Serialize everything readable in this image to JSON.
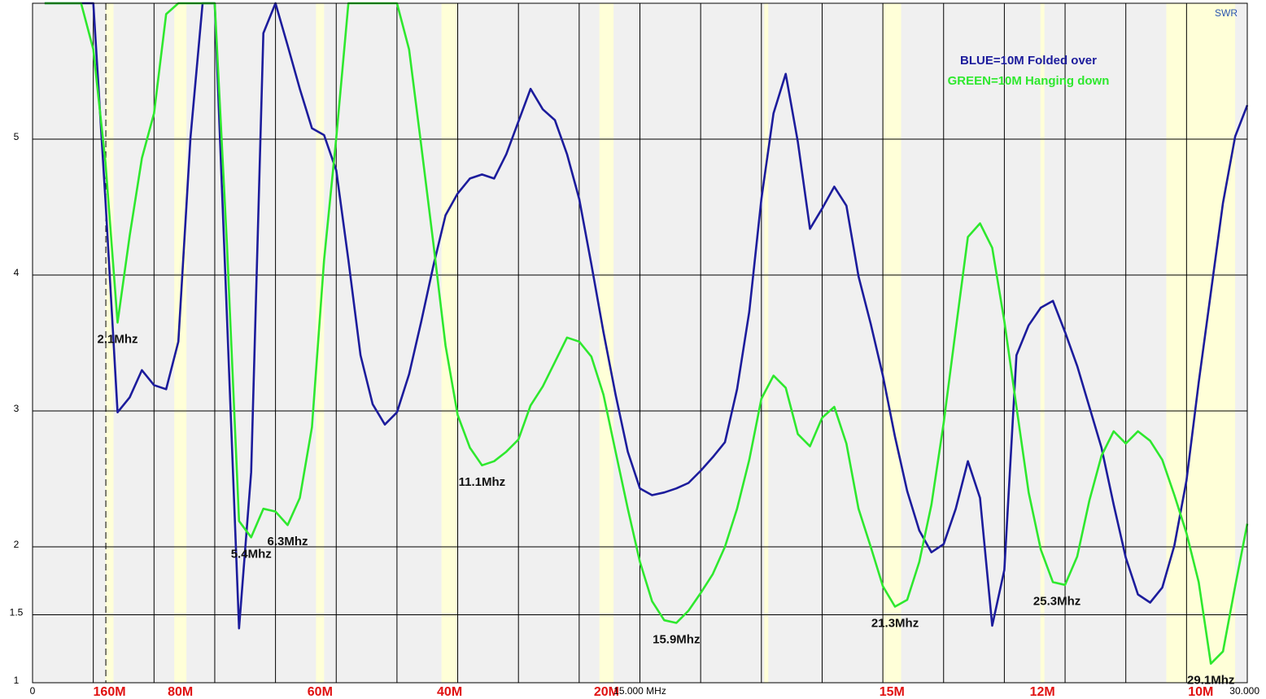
{
  "chart_data": {
    "type": "line",
    "title": "SWR",
    "x": [
      0.3,
      0.6,
      0.9,
      1.2,
      1.5,
      1.8,
      2.1,
      2.4,
      2.7,
      3.0,
      3.3,
      3.6,
      3.9,
      4.2,
      4.5,
      4.8,
      5.1,
      5.4,
      5.7,
      6.0,
      6.3,
      6.6,
      6.9,
      7.2,
      7.5,
      7.8,
      8.1,
      8.4,
      8.7,
      9.0,
      9.3,
      9.6,
      9.9,
      10.2,
      10.5,
      10.8,
      11.1,
      11.4,
      11.7,
      12.0,
      12.3,
      12.6,
      12.9,
      13.2,
      13.5,
      13.8,
      14.1,
      14.4,
      14.7,
      15.0,
      15.3,
      15.6,
      15.9,
      16.2,
      16.5,
      16.8,
      17.1,
      17.4,
      17.7,
      18.0,
      18.3,
      18.6,
      18.9,
      19.2,
      19.5,
      19.8,
      20.1,
      20.4,
      20.7,
      21.0,
      21.3,
      21.6,
      21.9,
      22.2,
      22.5,
      22.8,
      23.1,
      23.4,
      23.7,
      24.0,
      24.3,
      24.6,
      24.9,
      25.2,
      25.5,
      25.8,
      26.1,
      26.4,
      26.7,
      27.0,
      27.3,
      27.6,
      27.9,
      28.2,
      28.5,
      28.8,
      29.1,
      29.4,
      29.7,
      30.0
    ],
    "series": [
      {
        "name": "BLUE=10M Folded over",
        "color": "#1c1c9c",
        "values": [
          6,
          6,
          6,
          6,
          6,
          4.55,
          2.99,
          3.1,
          3.3,
          3.19,
          3.16,
          3.51,
          5.01,
          6,
          6,
          3.7,
          1.4,
          2.55,
          5.78,
          6,
          5.69,
          5.37,
          5.08,
          5.03,
          4.77,
          4.11,
          3.41,
          3.05,
          2.9,
          2.99,
          3.27,
          3.66,
          4.07,
          4.44,
          4.6,
          4.71,
          4.74,
          4.71,
          4.89,
          5.13,
          5.37,
          5.22,
          5.14,
          4.89,
          4.56,
          4.08,
          3.58,
          3.12,
          2.7,
          2.43,
          2.38,
          2.4,
          2.43,
          2.47,
          2.56,
          2.66,
          2.77,
          3.16,
          3.73,
          4.56,
          5.19,
          5.48,
          4.98,
          4.34,
          4.49,
          4.65,
          4.51,
          3.99,
          3.64,
          3.26,
          2.81,
          2.41,
          2.12,
          1.96,
          2.02,
          2.28,
          2.63,
          2.36,
          1.42,
          1.83,
          3.41,
          3.63,
          3.76,
          3.81,
          3.58,
          3.33,
          3.03,
          2.73,
          2.31,
          1.92,
          1.65,
          1.59,
          1.7,
          2.01,
          2.49,
          3.21,
          3.87,
          4.53,
          5.02,
          5.25
        ]
      },
      {
        "name": "GREEN=10M Hanging down",
        "color": "#2ee82e",
        "values": [
          6,
          6,
          6,
          6,
          5.66,
          4.83,
          3.65,
          4.29,
          4.86,
          5.19,
          5.92,
          6,
          6,
          6,
          6,
          4.23,
          2.19,
          2.07,
          2.28,
          2.26,
          2.16,
          2.36,
          2.88,
          4.11,
          5.01,
          6,
          6,
          6,
          6,
          6,
          5.66,
          4.95,
          4.23,
          3.48,
          2.97,
          2.73,
          2.6,
          2.63,
          2.7,
          2.79,
          3.04,
          3.18,
          3.36,
          3.54,
          3.51,
          3.4,
          3.12,
          2.7,
          2.28,
          1.89,
          1.6,
          1.46,
          1.44,
          1.53,
          1.66,
          1.8,
          2.0,
          2.28,
          2.64,
          3.09,
          3.26,
          3.17,
          2.83,
          2.74,
          2.95,
          3.03,
          2.76,
          2.28,
          2.0,
          1.71,
          1.56,
          1.61,
          1.89,
          2.31,
          2.91,
          3.6,
          4.28,
          4.38,
          4.2,
          3.66,
          3.03,
          2.4,
          1.98,
          1.74,
          1.72,
          1.93,
          2.34,
          2.67,
          2.85,
          2.76,
          2.85,
          2.78,
          2.64,
          2.38,
          2.1,
          1.74,
          1.14,
          1.23,
          1.71,
          2.17
        ]
      }
    ],
    "xlim": [
      0,
      30
    ],
    "xticks": [
      0,
      {
        "value": 15,
        "label": "15.000 MHz"
      },
      {
        "value": 30,
        "label": "30.000"
      }
    ],
    "xgrid": [
      1.5,
      3,
      4.5,
      6,
      7.5,
      9,
      10.5,
      12,
      13.5,
      15,
      16.5,
      18,
      19.5,
      21,
      22.5,
      24,
      25.5,
      27,
      28.5
    ],
    "ylim": [
      1,
      6
    ],
    "yticks": [
      1,
      1.5,
      2,
      3,
      4,
      5
    ],
    "grid": true,
    "cursor": 1.81,
    "bands": [
      {
        "label": "160M",
        "start": 1.8,
        "end": 2.0
      },
      {
        "label": "80M",
        "start": 3.5,
        "end": 3.8
      },
      {
        "label": "60M",
        "start": 7.0,
        "end": 7.2
      },
      {
        "label": "40M",
        "start": 10.1,
        "end": 10.5
      },
      {
        "label": "20M",
        "start": 14.0,
        "end": 14.35
      },
      {
        "label": null,
        "start": 18.07,
        "end": 18.17
      },
      {
        "label": "15M",
        "start": 21.0,
        "end": 21.45
      },
      {
        "label": "12M",
        "start": 24.89,
        "end": 24.99
      },
      {
        "label": "10M",
        "start": 28.0,
        "end": 29.7
      }
    ],
    "annotations": [
      {
        "text": "2.1Mhz",
        "x": 2.1,
        "y": 3.65
      },
      {
        "text": "5.4Mhz",
        "x": 5.4,
        "y": 2.07
      },
      {
        "text": "6.3Mhz",
        "x": 6.3,
        "y": 2.16
      },
      {
        "text": "11.1Mhz",
        "x": 11.1,
        "y": 2.6
      },
      {
        "text": "15.9Mhz",
        "x": 15.9,
        "y": 1.44
      },
      {
        "text": "21.3Mhz",
        "x": 21.3,
        "y": 1.56
      },
      {
        "text": "25.3Mhz",
        "x": 25.3,
        "y": 1.72
      },
      {
        "text": "29.1Mhz",
        "x": 29.1,
        "y": 1.14
      }
    ]
  }
}
